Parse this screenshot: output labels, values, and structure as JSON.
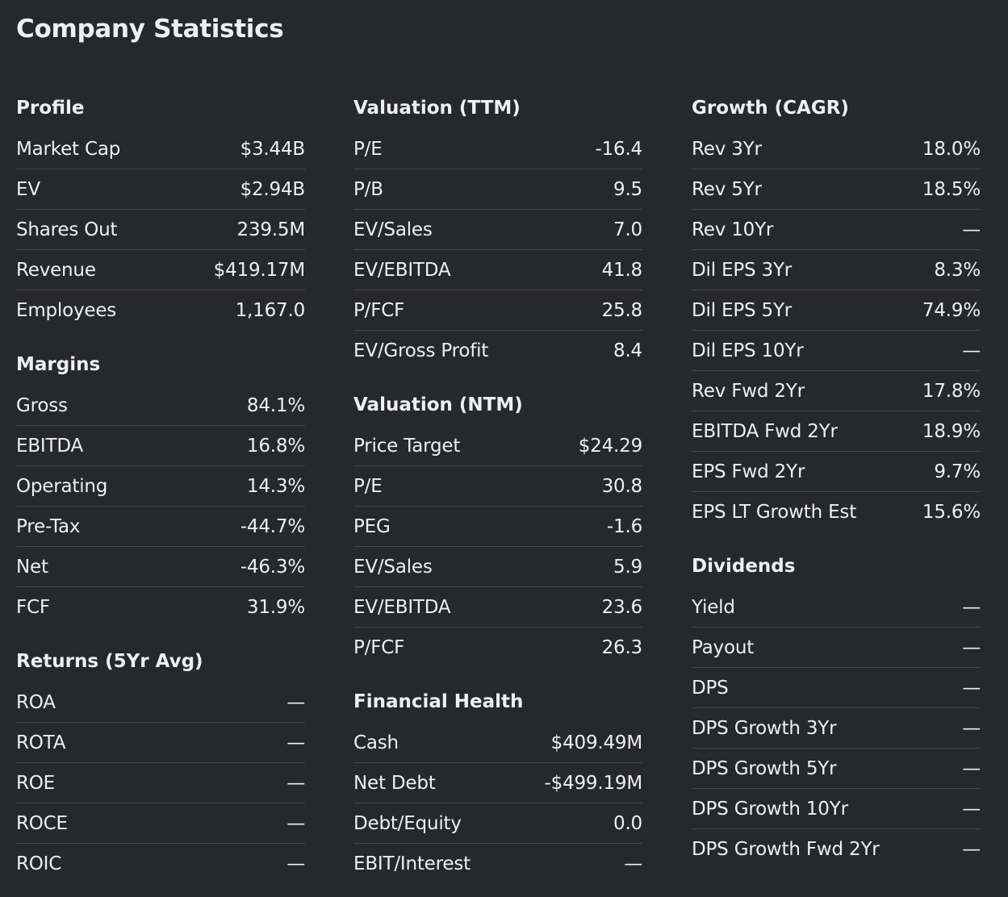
{
  "title": "Company Statistics",
  "columns": [
    {
      "sections": [
        {
          "title": "Profile",
          "rows": [
            {
              "label": "Market Cap",
              "value": "$3.44B"
            },
            {
              "label": "EV",
              "value": "$2.94B"
            },
            {
              "label": "Shares Out",
              "value": "239.5M"
            },
            {
              "label": "Revenue",
              "value": "$419.17M"
            },
            {
              "label": "Employees",
              "value": "1,167.0"
            }
          ]
        },
        {
          "title": "Margins",
          "rows": [
            {
              "label": "Gross",
              "value": "84.1%"
            },
            {
              "label": "EBITDA",
              "value": "16.8%"
            },
            {
              "label": "Operating",
              "value": "14.3%"
            },
            {
              "label": "Pre-Tax",
              "value": "-44.7%"
            },
            {
              "label": "Net",
              "value": "-46.3%"
            },
            {
              "label": "FCF",
              "value": "31.9%"
            }
          ]
        },
        {
          "title": "Returns (5Yr Avg)",
          "rows": [
            {
              "label": "ROA",
              "value": "—"
            },
            {
              "label": "ROTA",
              "value": "—"
            },
            {
              "label": "ROE",
              "value": "—"
            },
            {
              "label": "ROCE",
              "value": "—"
            },
            {
              "label": "ROIC",
              "value": "—"
            }
          ]
        }
      ]
    },
    {
      "sections": [
        {
          "title": "Valuation (TTM)",
          "rows": [
            {
              "label": "P/E",
              "value": "-16.4"
            },
            {
              "label": "P/B",
              "value": "9.5"
            },
            {
              "label": "EV/Sales",
              "value": "7.0"
            },
            {
              "label": "EV/EBITDA",
              "value": "41.8"
            },
            {
              "label": "P/FCF",
              "value": "25.8"
            },
            {
              "label": "EV/Gross Profit",
              "value": "8.4"
            }
          ]
        },
        {
          "title": "Valuation (NTM)",
          "rows": [
            {
              "label": "Price Target",
              "value": "$24.29"
            },
            {
              "label": "P/E",
              "value": "30.8"
            },
            {
              "label": "PEG",
              "value": "-1.6"
            },
            {
              "label": "EV/Sales",
              "value": "5.9"
            },
            {
              "label": "EV/EBITDA",
              "value": "23.6"
            },
            {
              "label": "P/FCF",
              "value": "26.3"
            }
          ]
        },
        {
          "title": "Financial Health",
          "rows": [
            {
              "label": "Cash",
              "value": "$409.49M"
            },
            {
              "label": "Net Debt",
              "value": "-$499.19M"
            },
            {
              "label": "Debt/Equity",
              "value": "0.0"
            },
            {
              "label": "EBIT/Interest",
              "value": "—"
            }
          ]
        }
      ]
    },
    {
      "sections": [
        {
          "title": "Growth (CAGR)",
          "rows": [
            {
              "label": "Rev 3Yr",
              "value": "18.0%"
            },
            {
              "label": "Rev 5Yr",
              "value": "18.5%"
            },
            {
              "label": "Rev 10Yr",
              "value": "—"
            },
            {
              "label": "Dil EPS 3Yr",
              "value": "8.3%"
            },
            {
              "label": "Dil EPS 5Yr",
              "value": "74.9%"
            },
            {
              "label": "Dil EPS 10Yr",
              "value": "—"
            },
            {
              "label": "Rev Fwd 2Yr",
              "value": "17.8%"
            },
            {
              "label": "EBITDA Fwd 2Yr",
              "value": "18.9%"
            },
            {
              "label": "EPS Fwd 2Yr",
              "value": "9.7%"
            },
            {
              "label": "EPS LT Growth Est",
              "value": "15.6%"
            }
          ]
        },
        {
          "title": "Dividends",
          "rows": [
            {
              "label": "Yield",
              "value": "—"
            },
            {
              "label": "Payout",
              "value": "—"
            },
            {
              "label": "DPS",
              "value": "—"
            },
            {
              "label": "DPS Growth 3Yr",
              "value": "—"
            },
            {
              "label": "DPS Growth 5Yr",
              "value": "—"
            },
            {
              "label": "DPS Growth 10Yr",
              "value": "—"
            },
            {
              "label": "DPS Growth Fwd 2Yr",
              "value": "—"
            }
          ]
        }
      ]
    }
  ]
}
